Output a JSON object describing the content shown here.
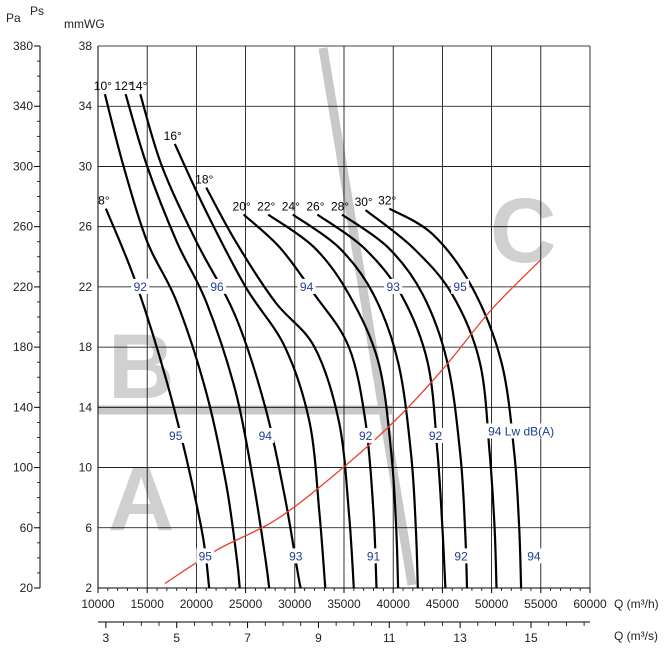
{
  "units": {
    "pa": "Pa",
    "ps": "Ps",
    "mmwg": "mmWG",
    "q_m3h": "Q (m³/h)",
    "q_m3s": "Q (m³/s)"
  },
  "axes": {
    "pa_ticks": [
      "380",
      "340",
      "300",
      "260",
      "220",
      "180",
      "140",
      "100",
      "60",
      "20"
    ],
    "mmwg_ticks": [
      "38",
      "34",
      "30",
      "26",
      "22",
      "18",
      "14",
      "10",
      "6",
      "2"
    ],
    "m3h_ticks": [
      "10000",
      "15000",
      "20000",
      "25000",
      "30000",
      "35000",
      "40000",
      "45000",
      "50000",
      "55000",
      "60000"
    ],
    "m3s_ticks": [
      "3",
      "5",
      "7",
      "9",
      "11",
      "13",
      "15"
    ]
  },
  "zones": [
    "A",
    "B",
    "C"
  ],
  "colors": {
    "curve": "#000000",
    "noise": "#e8402a",
    "zone": "#cccccc",
    "noise_label": "#1f3f8f"
  },
  "chart_data": {
    "type": "line",
    "x_unit": "m³/h",
    "y_unit": "mmWG",
    "xlim": [
      10000,
      60000
    ],
    "ylim": [
      2,
      38
    ],
    "grid": true,
    "series": [
      {
        "name": "8°",
        "points": [
          [
            10800,
            27.2
          ],
          [
            14000,
            22
          ],
          [
            17700,
            14
          ],
          [
            20500,
            6
          ],
          [
            21300,
            2
          ]
        ]
      },
      {
        "name": "10°",
        "points": [
          [
            10700,
            34.8
          ],
          [
            12600,
            30
          ],
          [
            15000,
            25
          ],
          [
            18000,
            21
          ],
          [
            21000,
            15
          ],
          [
            23000,
            9
          ],
          [
            24100,
            4
          ],
          [
            24400,
            2
          ]
        ]
      },
      {
        "name": "12°",
        "points": [
          [
            12800,
            34.8
          ],
          [
            15000,
            30
          ],
          [
            18000,
            25
          ],
          [
            21000,
            21
          ],
          [
            24000,
            15
          ],
          [
            25800,
            9
          ],
          [
            27000,
            4
          ],
          [
            27400,
            2
          ]
        ]
      },
      {
        "name": "14°",
        "points": [
          [
            14300,
            34.8
          ],
          [
            16500,
            30
          ],
          [
            20000,
            25
          ],
          [
            24000,
            20
          ],
          [
            27000,
            14
          ],
          [
            29000,
            8
          ],
          [
            30300,
            3
          ],
          [
            30600,
            2
          ]
        ]
      },
      {
        "name": "16°",
        "points": [
          [
            17800,
            31.5
          ],
          [
            21000,
            27
          ],
          [
            25000,
            22
          ],
          [
            29000,
            18
          ],
          [
            31500,
            13
          ],
          [
            32500,
            7
          ],
          [
            33100,
            2
          ]
        ]
      },
      {
        "name": "18°",
        "points": [
          [
            21000,
            28.6
          ],
          [
            24000,
            25
          ],
          [
            28000,
            21
          ],
          [
            32000,
            18
          ],
          [
            34500,
            13
          ],
          [
            35500,
            7
          ],
          [
            36000,
            2
          ]
        ]
      },
      {
        "name": "20°",
        "points": [
          [
            24800,
            26.8
          ],
          [
            28500,
            24.6
          ],
          [
            32000,
            21.5
          ],
          [
            35500,
            18
          ],
          [
            37200,
            13
          ],
          [
            38000,
            7
          ],
          [
            38300,
            2
          ]
        ]
      },
      {
        "name": "22°",
        "points": [
          [
            27300,
            26.8
          ],
          [
            32000,
            24.6
          ],
          [
            35500,
            21.5
          ],
          [
            38500,
            17
          ],
          [
            39800,
            11
          ],
          [
            40300,
            6
          ],
          [
            40500,
            2
          ]
        ]
      },
      {
        "name": "24°",
        "points": [
          [
            29800,
            26.8
          ],
          [
            34500,
            24.6
          ],
          [
            38000,
            21.5
          ],
          [
            40500,
            17
          ],
          [
            41800,
            11
          ],
          [
            42300,
            6
          ],
          [
            42500,
            2
          ]
        ]
      },
      {
        "name": "26°",
        "points": [
          [
            32300,
            26.8
          ],
          [
            37000,
            24.6
          ],
          [
            40800,
            21.5
          ],
          [
            43500,
            17
          ],
          [
            44500,
            11
          ],
          [
            45000,
            6
          ],
          [
            45300,
            2
          ]
        ]
      },
      {
        "name": "28°",
        "points": [
          [
            34800,
            26.8
          ],
          [
            39500,
            24.6
          ],
          [
            43000,
            21.5
          ],
          [
            45500,
            17
          ],
          [
            46800,
            11
          ],
          [
            47300,
            6
          ],
          [
            47500,
            2
          ]
        ]
      },
      {
        "name": "30°",
        "points": [
          [
            37200,
            27.1
          ],
          [
            42000,
            24.6
          ],
          [
            46000,
            21.5
          ],
          [
            48800,
            17
          ],
          [
            49800,
            11
          ],
          [
            50300,
            6
          ],
          [
            50500,
            2
          ]
        ]
      },
      {
        "name": "32°",
        "points": [
          [
            39600,
            27.2
          ],
          [
            44000,
            25.5
          ],
          [
            48000,
            22
          ],
          [
            51000,
            17
          ],
          [
            52300,
            11
          ],
          [
            52800,
            6
          ],
          [
            53000,
            2
          ]
        ]
      }
    ],
    "noise_curve": {
      "points": [
        [
          16800,
          2.3
        ],
        [
          22000,
          4.5
        ],
        [
          28000,
          6.5
        ],
        [
          34000,
          9.5
        ],
        [
          40000,
          13
        ],
        [
          45000,
          16.5
        ],
        [
          50000,
          20.5
        ],
        [
          55000,
          23.8
        ]
      ]
    },
    "noise_labels": [
      {
        "text": "92",
        "x": 14300,
        "y": 22
      },
      {
        "text": "96",
        "x": 22100,
        "y": 22
      },
      {
        "text": "94",
        "x": 31200,
        "y": 22
      },
      {
        "text": "93",
        "x": 40000,
        "y": 22
      },
      {
        "text": "95",
        "x": 46800,
        "y": 22
      },
      {
        "text": "95",
        "x": 17900,
        "y": 12.1
      },
      {
        "text": "94",
        "x": 27000,
        "y": 12.1
      },
      {
        "text": "92",
        "x": 37200,
        "y": 12.1
      },
      {
        "text": "92",
        "x": 44300,
        "y": 12.1
      },
      {
        "text": "94 Lw dB(A)",
        "x": 53000,
        "y": 12.4
      },
      {
        "text": "95",
        "x": 20900,
        "y": 4.1
      },
      {
        "text": "93",
        "x": 30100,
        "y": 4.1
      },
      {
        "text": "91",
        "x": 38000,
        "y": 4.1
      },
      {
        "text": "92",
        "x": 46900,
        "y": 4.1
      },
      {
        "text": "94",
        "x": 54300,
        "y": 4.1
      }
    ]
  }
}
